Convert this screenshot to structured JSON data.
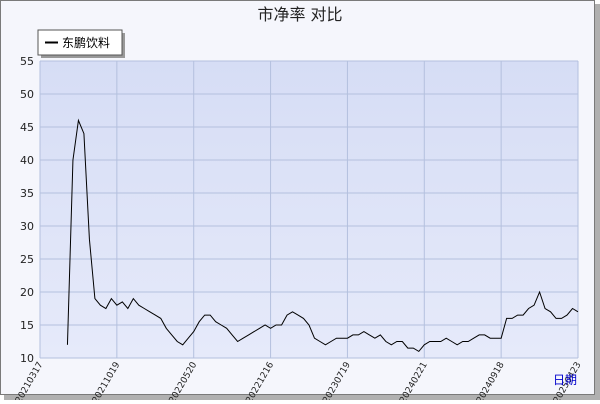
{
  "chart_data": {
    "type": "line",
    "title": "市净率  对比",
    "x_label": "日期",
    "categories": [
      "20210317",
      null,
      null,
      null,
      null,
      null,
      null,
      null,
      null,
      null,
      null,
      null,
      null,
      null,
      "20211019",
      null,
      null,
      null,
      null,
      null,
      null,
      null,
      null,
      null,
      null,
      null,
      null,
      null,
      "20220520",
      null,
      null,
      null,
      null,
      null,
      null,
      null,
      null,
      null,
      null,
      null,
      null,
      null,
      "20221216",
      null,
      null,
      null,
      null,
      null,
      null,
      null,
      null,
      null,
      null,
      null,
      null,
      null,
      "20230719",
      null,
      null,
      null,
      null,
      null,
      null,
      null,
      null,
      null,
      null,
      null,
      null,
      null,
      "20240221",
      null,
      null,
      null,
      null,
      null,
      null,
      null,
      null,
      null,
      null,
      null,
      null,
      null,
      "20240918",
      null,
      null,
      null,
      null,
      null,
      null,
      null,
      null,
      null,
      null,
      null,
      null,
      null,
      "20250423"
    ],
    "series": [
      {
        "name": "东鹏饮料",
        "color": "#000000",
        "values": [
          null,
          null,
          null,
          null,
          null,
          12,
          40,
          46,
          44,
          28,
          19,
          18,
          17.5,
          19,
          18,
          18.5,
          17.5,
          19,
          18,
          17.5,
          17,
          16.5,
          16,
          14.5,
          13.5,
          12.5,
          12,
          13,
          14,
          15.5,
          16.5,
          16.5,
          15.5,
          15,
          14.5,
          13.5,
          12.5,
          13,
          13.5,
          14,
          14.5,
          15,
          14.5,
          15,
          15,
          16.5,
          17,
          16.5,
          16,
          15,
          13,
          12.5,
          12,
          12.5,
          13,
          13,
          13,
          13.5,
          13.5,
          14,
          13.5,
          13,
          13.5,
          12.5,
          12,
          12.5,
          12.5,
          11.5,
          11.5,
          11,
          12,
          12.5,
          12.5,
          12.5,
          13,
          12.5,
          12,
          12.5,
          12.5,
          13,
          13.5,
          13.5,
          13,
          13,
          13,
          16,
          16,
          16.5,
          16.5,
          17.5,
          18,
          20,
          17.5,
          17,
          16,
          16,
          16.5,
          17.5,
          17
        ]
      }
    ],
    "ylim": [
      10,
      55
    ],
    "yticks": [
      10,
      15,
      20,
      25,
      30,
      35,
      40,
      45,
      50,
      55
    ],
    "grid": true,
    "legend": "top-left"
  }
}
